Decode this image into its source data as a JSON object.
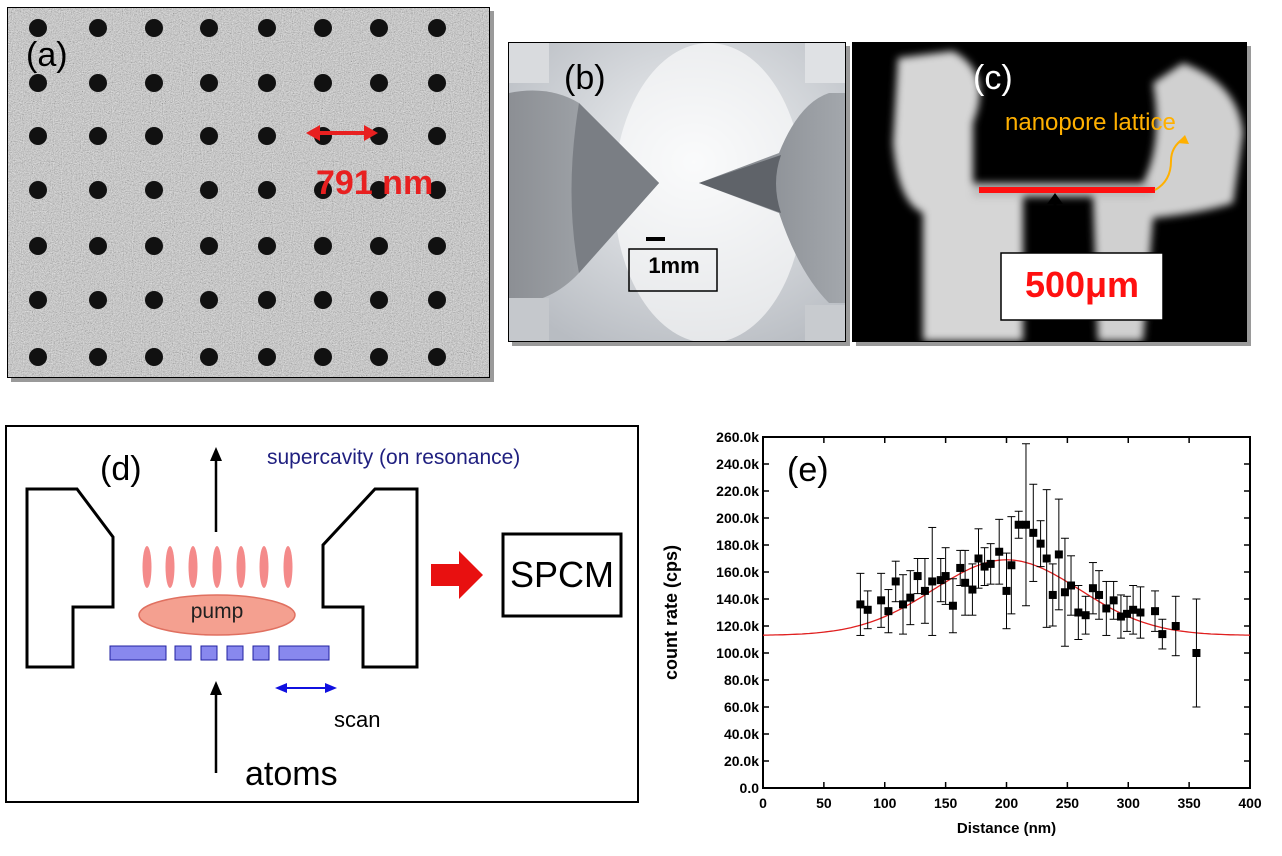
{
  "panel_a": {
    "label": "(a)",
    "spacing_label": "791 nm"
  },
  "panel_b": {
    "label": "(b)",
    "scale_label": "1mm"
  },
  "panel_c": {
    "label": "(c)",
    "annotation": "nanopore lattice",
    "scale_label": "500μm"
  },
  "panel_d": {
    "label": "(d)",
    "cavity_label": "supercavity (on resonance)",
    "pump_label": "pump",
    "detector_label": "SPCM",
    "scan_label": "scan",
    "atoms_label": "atoms"
  },
  "panel_e": {
    "label": "(e)"
  },
  "chart_data": {
    "type": "scatter",
    "title": "",
    "xlabel": "Distance (nm)",
    "ylabel": "count rate (cps)",
    "xlim": [
      0,
      400
    ],
    "ylim": [
      0,
      260000
    ],
    "x_ticks": [
      "0",
      "50",
      "100",
      "150",
      "200",
      "250",
      "300",
      "350",
      "400"
    ],
    "y_ticks": [
      "0.0",
      "20.0k",
      "40.0k",
      "60.0k",
      "80.0k",
      "100.0k",
      "120.0k",
      "140.0k",
      "160.0k",
      "180.0k",
      "200.0k",
      "220.0k",
      "240.0k",
      "260.0k"
    ],
    "grid": false,
    "legend": "none",
    "series": [
      {
        "kind": "points_with_error_bars",
        "points": [
          {
            "x": 80,
            "y": 136000,
            "err": 23000
          },
          {
            "x": 86,
            "y": 132000,
            "err": 14000
          },
          {
            "x": 97,
            "y": 139000,
            "err": 20000
          },
          {
            "x": 103,
            "y": 131000,
            "err": 16000
          },
          {
            "x": 109,
            "y": 153000,
            "err": 15000
          },
          {
            "x": 115,
            "y": 136000,
            "err": 22000
          },
          {
            "x": 121,
            "y": 141000,
            "err": 20000
          },
          {
            "x": 127,
            "y": 157000,
            "err": 13000
          },
          {
            "x": 133,
            "y": 146000,
            "err": 24000
          },
          {
            "x": 139,
            "y": 153000,
            "err": 40000
          },
          {
            "x": 146,
            "y": 154000,
            "err": 16000
          },
          {
            "x": 150,
            "y": 157000,
            "err": 21000
          },
          {
            "x": 156,
            "y": 135000,
            "err": 20000
          },
          {
            "x": 162,
            "y": 163000,
            "err": 13000
          },
          {
            "x": 166,
            "y": 152000,
            "err": 24000
          },
          {
            "x": 172,
            "y": 147000,
            "err": 19000
          },
          {
            "x": 177,
            "y": 170000,
            "err": 22000
          },
          {
            "x": 182,
            "y": 164000,
            "err": 14000
          },
          {
            "x": 187,
            "y": 166000,
            "err": 15000
          },
          {
            "x": 194,
            "y": 175000,
            "err": 24000
          },
          {
            "x": 200,
            "y": 146000,
            "err": 28000
          },
          {
            "x": 204,
            "y": 165000,
            "err": 36000
          },
          {
            "x": 210,
            "y": 195000,
            "err": 10000
          },
          {
            "x": 216,
            "y": 195000,
            "err": 60000
          },
          {
            "x": 222,
            "y": 189000,
            "err": 36000
          },
          {
            "x": 228,
            "y": 181000,
            "err": 17000
          },
          {
            "x": 233,
            "y": 170000,
            "err": 51000
          },
          {
            "x": 238,
            "y": 143000,
            "err": 23000
          },
          {
            "x": 243,
            "y": 173000,
            "err": 41000
          },
          {
            "x": 248,
            "y": 145000,
            "err": 40000
          },
          {
            "x": 253,
            "y": 150000,
            "err": 22000
          },
          {
            "x": 259,
            "y": 130000,
            "err": 20000
          },
          {
            "x": 265,
            "y": 128000,
            "err": 14000
          },
          {
            "x": 271,
            "y": 148000,
            "err": 19000
          },
          {
            "x": 276,
            "y": 143000,
            "err": 18000
          },
          {
            "x": 282,
            "y": 133000,
            "err": 20000
          },
          {
            "x": 288,
            "y": 139000,
            "err": 14000
          },
          {
            "x": 294,
            "y": 127000,
            "err": 16000
          },
          {
            "x": 299,
            "y": 129000,
            "err": 13000
          },
          {
            "x": 304,
            "y": 132000,
            "err": 18000
          },
          {
            "x": 310,
            "y": 130000,
            "err": 19000
          },
          {
            "x": 322,
            "y": 131000,
            "err": 15000
          },
          {
            "x": 328,
            "y": 114000,
            "err": 11000
          },
          {
            "x": 339,
            "y": 120000,
            "err": 22000
          },
          {
            "x": 356,
            "y": 100000,
            "err": 40000
          }
        ]
      },
      {
        "kind": "gaussian_fit",
        "baseline": 113000,
        "amplitude": 56000,
        "center": 200,
        "sigma": 60
      }
    ],
    "colors": {
      "points": "#000000",
      "fit": "#e02020"
    }
  }
}
